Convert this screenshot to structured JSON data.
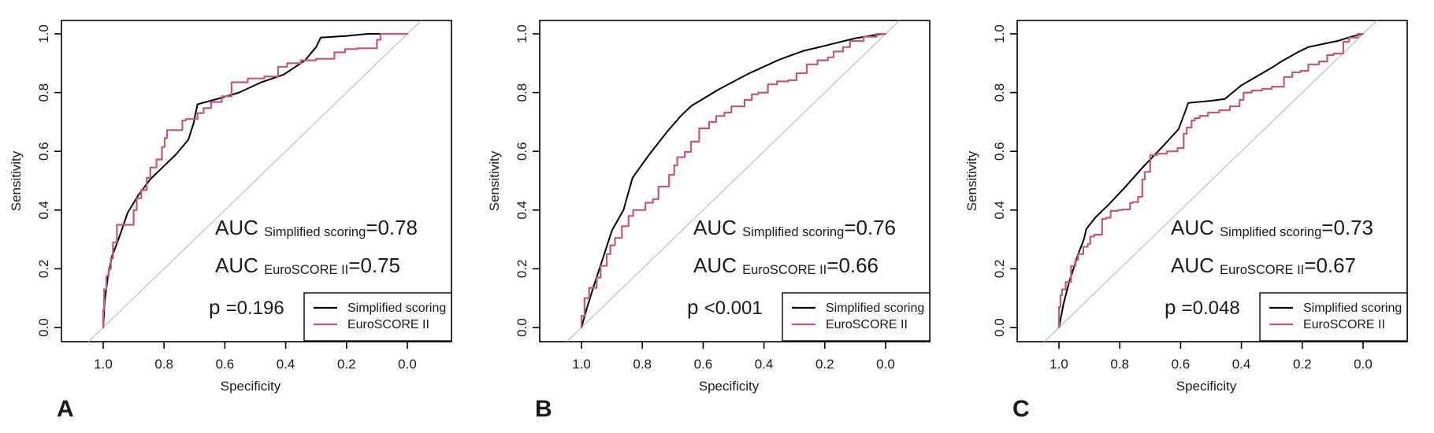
{
  "figure": {
    "background": "#ffffff",
    "colors": {
      "curve_black": "#000000",
      "curve_red": "#bf5b72",
      "diagonal": "#b4b4b4",
      "box": "#000000",
      "text": "#1a1a1a"
    }
  },
  "chart_data": [
    {
      "type": "line",
      "panel_label": "A",
      "xlabel": "Specificity",
      "ylabel": "Sensitivity",
      "x_ticks": [
        "1.0",
        "0.8",
        "0.6",
        "0.4",
        "0.2",
        "0.0"
      ],
      "y_ticks": [
        "0.0",
        "0.2",
        "0.4",
        "0.6",
        "0.8",
        "1.0"
      ],
      "x_axis_reversed": true,
      "xlim": [
        1.0,
        0.0
      ],
      "ylim": [
        0.0,
        1.0
      ],
      "grid": false,
      "diagonal_reference_line": true,
      "annotations": {
        "auc_lines": [
          {
            "prefix": "AUC",
            "subscript": "Simplified scoring",
            "value": "=0.78"
          },
          {
            "prefix": "AUC",
            "subscript": "EuroSCORE II",
            "value": "=0.75"
          }
        ],
        "p_line": {
          "prefix": "p",
          "value": "=0.196"
        }
      },
      "legend": {
        "position": "bottom-right",
        "entries": [
          {
            "label": "Simplified scoring",
            "color": "#000000"
          },
          {
            "label": "EuroSCORE II",
            "color": "#bf5b72"
          }
        ]
      },
      "series": [
        {
          "name": "Simplified scoring",
          "color": "#000000",
          "style": "line",
          "points": [
            [
              1.0,
              0.0
            ],
            [
              0.995,
              0.09
            ],
            [
              0.985,
              0.17
            ],
            [
              0.972,
              0.24
            ],
            [
              0.95,
              0.3
            ],
            [
              0.938,
              0.335
            ],
            [
              0.92,
              0.39
            ],
            [
              0.885,
              0.45
            ],
            [
              0.845,
              0.505
            ],
            [
              0.8,
              0.55
            ],
            [
              0.76,
              0.59
            ],
            [
              0.72,
              0.64
            ],
            [
              0.703,
              0.695
            ],
            [
              0.69,
              0.76
            ],
            [
              0.62,
              0.78
            ],
            [
              0.554,
              0.8
            ],
            [
              0.48,
              0.835
            ],
            [
              0.407,
              0.861
            ],
            [
              0.337,
              0.909
            ],
            [
              0.3,
              0.955
            ],
            [
              0.285,
              0.987
            ],
            [
              0.2,
              0.993
            ],
            [
              0.13,
              1.0
            ],
            [
              0.0,
              1.0
            ]
          ]
        },
        {
          "name": "EuroSCORE II",
          "color": "#bf5b72",
          "style": "step",
          "points": [
            [
              1.0,
              0.0
            ],
            [
              0.997,
              0.06
            ],
            [
              0.99,
              0.13
            ],
            [
              0.982,
              0.175
            ],
            [
              0.975,
              0.2
            ],
            [
              0.968,
              0.235
            ],
            [
              0.955,
              0.29
            ],
            [
              0.945,
              0.35
            ],
            [
              0.9,
              0.35
            ],
            [
              0.89,
              0.4
            ],
            [
              0.875,
              0.44
            ],
            [
              0.857,
              0.468
            ],
            [
              0.845,
              0.51
            ],
            [
              0.825,
              0.545
            ],
            [
              0.807,
              0.572
            ],
            [
              0.798,
              0.615
            ],
            [
              0.79,
              0.645
            ],
            [
              0.775,
              0.672
            ],
            [
              0.74,
              0.672
            ],
            [
              0.728,
              0.705
            ],
            [
              0.69,
              0.71
            ],
            [
              0.67,
              0.73
            ],
            [
              0.645,
              0.747
            ],
            [
              0.61,
              0.768
            ],
            [
              0.578,
              0.787
            ],
            [
              0.525,
              0.835
            ],
            [
              0.47,
              0.848
            ],
            [
              0.425,
              0.855
            ],
            [
              0.395,
              0.888
            ],
            [
              0.35,
              0.9
            ],
            [
              0.3,
              0.91
            ],
            [
              0.24,
              0.915
            ],
            [
              0.205,
              0.937
            ],
            [
              0.165,
              0.948
            ],
            [
              0.1,
              0.951
            ],
            [
              0.088,
              0.98
            ],
            [
              0.035,
              1.0
            ],
            [
              0.0,
              1.0
            ]
          ]
        }
      ]
    },
    {
      "type": "line",
      "panel_label": "B",
      "xlabel": "Specificity",
      "ylabel": "Sensitivity",
      "x_ticks": [
        "1.0",
        "0.8",
        "0.6",
        "0.4",
        "0.2",
        "0.0"
      ],
      "y_ticks": [
        "0.0",
        "0.2",
        "0.4",
        "0.6",
        "0.8",
        "1.0"
      ],
      "x_axis_reversed": true,
      "xlim": [
        1.0,
        0.0
      ],
      "ylim": [
        0.0,
        1.0
      ],
      "grid": false,
      "diagonal_reference_line": true,
      "annotations": {
        "auc_lines": [
          {
            "prefix": "AUC",
            "subscript": "Simplified scoring",
            "value": "=0.76"
          },
          {
            "prefix": "AUC",
            "subscript": "EuroSCORE II",
            "value": "=0.66"
          }
        ],
        "p_line": {
          "prefix": "p",
          "value": "<0.001"
        }
      },
      "legend": {
        "position": "bottom-right",
        "entries": [
          {
            "label": "Simplified scoring",
            "color": "#000000"
          },
          {
            "label": "EuroSCORE II",
            "color": "#bf5b72"
          }
        ]
      },
      "series": [
        {
          "name": "Simplified scoring",
          "color": "#000000",
          "style": "line",
          "points": [
            [
              1.0,
              0.0
            ],
            [
              0.984,
              0.06
            ],
            [
              0.96,
              0.14
            ],
            [
              0.925,
              0.25
            ],
            [
              0.9,
              0.33
            ],
            [
              0.862,
              0.4
            ],
            [
              0.832,
              0.51
            ],
            [
              0.78,
              0.585
            ],
            [
              0.72,
              0.665
            ],
            [
              0.672,
              0.722
            ],
            [
              0.638,
              0.755
            ],
            [
              0.55,
              0.81
            ],
            [
              0.45,
              0.865
            ],
            [
              0.35,
              0.912
            ],
            [
              0.27,
              0.942
            ],
            [
              0.19,
              0.962
            ],
            [
              0.1,
              0.985
            ],
            [
              0.03,
              0.997
            ],
            [
              0.0,
              1.0
            ]
          ]
        },
        {
          "name": "EuroSCORE II",
          "color": "#bf5b72",
          "style": "step",
          "points": [
            [
              1.0,
              0.0
            ],
            [
              0.99,
              0.04
            ],
            [
              0.975,
              0.1
            ],
            [
              0.95,
              0.135
            ],
            [
              0.937,
              0.17
            ],
            [
              0.917,
              0.21
            ],
            [
              0.905,
              0.25
            ],
            [
              0.89,
              0.28
            ],
            [
              0.867,
              0.305
            ],
            [
              0.845,
              0.345
            ],
            [
              0.83,
              0.38
            ],
            [
              0.79,
              0.4
            ],
            [
              0.765,
              0.425
            ],
            [
              0.747,
              0.437
            ],
            [
              0.712,
              0.48
            ],
            [
              0.695,
              0.52
            ],
            [
              0.685,
              0.552
            ],
            [
              0.66,
              0.58
            ],
            [
              0.64,
              0.598
            ],
            [
              0.613,
              0.633
            ],
            [
              0.58,
              0.678
            ],
            [
              0.557,
              0.7
            ],
            [
              0.53,
              0.72
            ],
            [
              0.507,
              0.732
            ],
            [
              0.464,
              0.753
            ],
            [
              0.44,
              0.775
            ],
            [
              0.419,
              0.794
            ],
            [
              0.387,
              0.8
            ],
            [
              0.357,
              0.828
            ],
            [
              0.32,
              0.838
            ],
            [
              0.293,
              0.842
            ],
            [
              0.259,
              0.866
            ],
            [
              0.224,
              0.896
            ],
            [
              0.19,
              0.91
            ],
            [
              0.171,
              0.92
            ],
            [
              0.14,
              0.94
            ],
            [
              0.117,
              0.955
            ],
            [
              0.072,
              0.976
            ],
            [
              0.03,
              0.99
            ],
            [
              0.0,
              1.0
            ]
          ]
        }
      ]
    },
    {
      "type": "line",
      "panel_label": "C",
      "xlabel": "Specificity",
      "ylabel": "Sensitivity",
      "x_ticks": [
        "1.0",
        "0.8",
        "0.6",
        "0.4",
        "0.2",
        "0.0"
      ],
      "y_ticks": [
        "0.0",
        "0.2",
        "0.4",
        "0.6",
        "0.8",
        "1.0"
      ],
      "x_axis_reversed": true,
      "xlim": [
        1.0,
        0.0
      ],
      "ylim": [
        0.0,
        1.0
      ],
      "grid": false,
      "diagonal_reference_line": true,
      "annotations": {
        "auc_lines": [
          {
            "prefix": "AUC",
            "subscript": "Simplified scoring",
            "value": "=0.73"
          },
          {
            "prefix": "AUC",
            "subscript": "EuroSCORE II",
            "value": "=0.67"
          }
        ],
        "p_line": {
          "prefix": "p",
          "value": "=0.048"
        }
      },
      "legend": {
        "position": "bottom-right",
        "entries": [
          {
            "label": "Simplified scoring",
            "color": "#000000"
          },
          {
            "label": "EuroSCORE II",
            "color": "#bf5b72"
          }
        ]
      },
      "series": [
        {
          "name": "Simplified scoring",
          "color": "#000000",
          "style": "line",
          "points": [
            [
              1.0,
              0.0
            ],
            [
              0.985,
              0.08
            ],
            [
              0.968,
              0.15
            ],
            [
              0.952,
              0.2
            ],
            [
              0.937,
              0.25
            ],
            [
              0.918,
              0.3
            ],
            [
              0.91,
              0.335
            ],
            [
              0.88,
              0.375
            ],
            [
              0.84,
              0.415
            ],
            [
              0.785,
              0.475
            ],
            [
              0.725,
              0.545
            ],
            [
              0.66,
              0.615
            ],
            [
              0.607,
              0.675
            ],
            [
              0.585,
              0.735
            ],
            [
              0.575,
              0.765
            ],
            [
              0.5,
              0.772
            ],
            [
              0.455,
              0.778
            ],
            [
              0.4,
              0.825
            ],
            [
              0.375,
              0.84
            ],
            [
              0.3,
              0.885
            ],
            [
              0.27,
              0.905
            ],
            [
              0.21,
              0.94
            ],
            [
              0.18,
              0.955
            ],
            [
              0.12,
              0.968
            ],
            [
              0.083,
              0.976
            ],
            [
              0.04,
              0.99
            ],
            [
              0.0,
              1.0
            ]
          ]
        },
        {
          "name": "EuroSCORE II",
          "color": "#bf5b72",
          "style": "step",
          "points": [
            [
              1.0,
              0.0
            ],
            [
              0.995,
              0.07
            ],
            [
              0.99,
              0.11
            ],
            [
              0.978,
              0.13
            ],
            [
              0.96,
              0.155
            ],
            [
              0.946,
              0.21
            ],
            [
              0.937,
              0.23
            ],
            [
              0.92,
              0.25
            ],
            [
              0.905,
              0.275
            ],
            [
              0.897,
              0.285
            ],
            [
              0.884,
              0.31
            ],
            [
              0.858,
              0.316
            ],
            [
              0.845,
              0.37
            ],
            [
              0.83,
              0.374
            ],
            [
              0.806,
              0.397
            ],
            [
              0.792,
              0.4
            ],
            [
              0.766,
              0.402
            ],
            [
              0.758,
              0.424
            ],
            [
              0.74,
              0.427
            ],
            [
              0.726,
              0.445
            ],
            [
              0.718,
              0.504
            ],
            [
              0.7,
              0.53
            ],
            [
              0.678,
              0.587
            ],
            [
              0.645,
              0.592
            ],
            [
              0.61,
              0.6
            ],
            [
              0.59,
              0.611
            ],
            [
              0.58,
              0.66
            ],
            [
              0.564,
              0.681
            ],
            [
              0.553,
              0.705
            ],
            [
              0.537,
              0.713
            ],
            [
              0.51,
              0.721
            ],
            [
              0.473,
              0.732
            ],
            [
              0.438,
              0.74
            ],
            [
              0.406,
              0.753
            ],
            [
              0.393,
              0.775
            ],
            [
              0.366,
              0.8
            ],
            [
              0.332,
              0.807
            ],
            [
              0.3,
              0.813
            ],
            [
              0.26,
              0.82
            ],
            [
              0.233,
              0.853
            ],
            [
              0.206,
              0.869
            ],
            [
              0.18,
              0.874
            ],
            [
              0.145,
              0.896
            ],
            [
              0.118,
              0.906
            ],
            [
              0.097,
              0.928
            ],
            [
              0.065,
              0.933
            ],
            [
              0.046,
              0.973
            ],
            [
              0.017,
              0.987
            ],
            [
              0.0,
              1.0
            ]
          ]
        }
      ]
    }
  ]
}
